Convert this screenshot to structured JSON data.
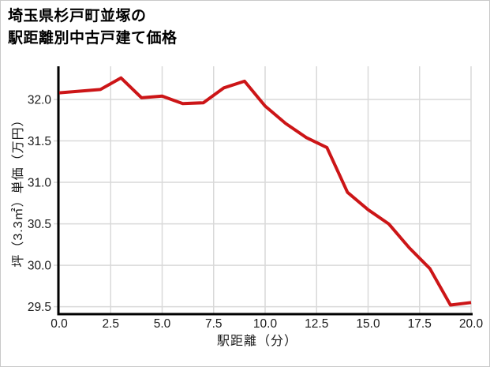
{
  "header": {
    "title_line1": "埼玉県杉戸町並塚の",
    "title_line2": "駅距離別中古戸建て価格"
  },
  "chart_data": {
    "type": "line",
    "title": "埼玉県杉戸町並塚の駅距離別中古戸建て価格",
    "xlabel": "駅距離（分）",
    "ylabel": "坪（3.3㎡）単価（万円）",
    "x": [
      0,
      1,
      2,
      3,
      4,
      5,
      6,
      7,
      8,
      9,
      10,
      11,
      12,
      13,
      14,
      15,
      16,
      17,
      18,
      19,
      20
    ],
    "y": [
      32.08,
      32.1,
      32.12,
      32.26,
      32.02,
      32.04,
      31.95,
      31.96,
      32.14,
      32.22,
      31.92,
      31.71,
      31.54,
      31.42,
      30.88,
      30.67,
      30.5,
      30.21,
      29.96,
      29.52,
      29.55
    ],
    "xlim": [
      0,
      20
    ],
    "ylim": [
      29.42,
      32.4
    ],
    "xtick_labels": [
      "0.0",
      "2.5",
      "5.0",
      "7.5",
      "10.0",
      "12.5",
      "15.0",
      "17.5",
      "20.0"
    ],
    "ytick_labels": [
      "29.5",
      "30.0",
      "30.5",
      "31.0",
      "31.5",
      "32.0"
    ],
    "grid": true,
    "legend_position": "none",
    "colors": {
      "line": "#cc1517",
      "grid": "#d9d9d9",
      "spine": "#000000",
      "tick_text": "#1a1a1a",
      "title_text": "#000000",
      "background": "#ffffff",
      "border": "#c9c9c9"
    }
  }
}
